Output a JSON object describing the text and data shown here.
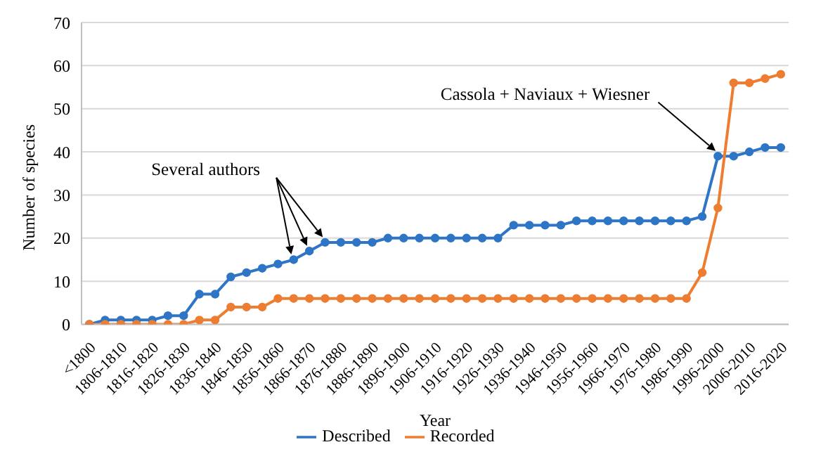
{
  "chart_data": {
    "type": "line",
    "xlabel": "Year",
    "ylabel": "Number of species",
    "categories": [
      "<1800",
      null,
      "1806-1810",
      null,
      "1816-1820",
      null,
      "1826-1830",
      null,
      "1836-1840",
      null,
      "1846-1850",
      null,
      "1856-1860",
      null,
      "1866-1870",
      null,
      "1876-1880",
      null,
      "1886-1890",
      null,
      "1896-1900",
      null,
      "1906-1910",
      null,
      "1916-1920",
      null,
      "1926-1930",
      null,
      "1936-1940",
      null,
      "1946-1950",
      null,
      "1956-1960",
      null,
      "1966-1970",
      null,
      "1976-1980",
      null,
      "1986-1990",
      null,
      "1996-2000",
      null,
      "2006-2010",
      null,
      "2016-2020"
    ],
    "series": [
      {
        "name": "Described",
        "color": "#2e75c6",
        "values": [
          0,
          1,
          1,
          1,
          1,
          2,
          2,
          7,
          7,
          11,
          12,
          13,
          14,
          15,
          17,
          19,
          19,
          19,
          19,
          20,
          20,
          20,
          20,
          20,
          20,
          20,
          20,
          23,
          23,
          23,
          23,
          24,
          24,
          24,
          24,
          24,
          24,
          24,
          24,
          25,
          39,
          39,
          40,
          41,
          41
        ]
      },
      {
        "name": "Recorded",
        "color": "#ed7d31",
        "values": [
          0,
          0,
          0,
          0,
          0,
          0,
          0,
          1,
          1,
          4,
          4,
          4,
          6,
          6,
          6,
          6,
          6,
          6,
          6,
          6,
          6,
          6,
          6,
          6,
          6,
          6,
          6,
          6,
          6,
          6,
          6,
          6,
          6,
          6,
          6,
          6,
          6,
          6,
          6,
          12,
          27,
          56,
          56,
          57,
          58
        ]
      }
    ],
    "ylim": [
      0,
      70
    ],
    "yticks": [
      0,
      10,
      20,
      30,
      40,
      50,
      60,
      70
    ],
    "grid": "y",
    "legend": "bottom",
    "marker": "circle",
    "line_style": "solid",
    "annotations": [
      "Several authors",
      "Cassola + Naviaux + Wiesner"
    ]
  }
}
